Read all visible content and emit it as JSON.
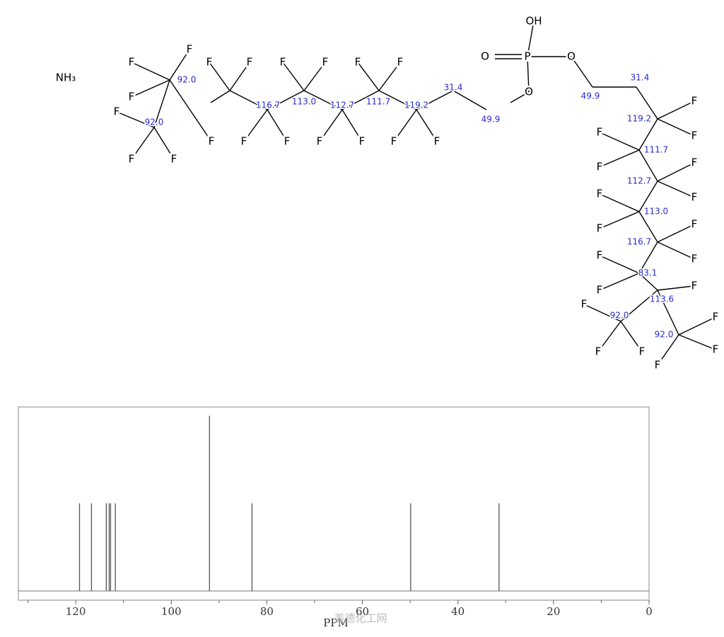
{
  "molecule": {
    "atoms": [
      "NH₃",
      "F",
      "F",
      "F",
      "F",
      "F",
      "F",
      "F",
      "F",
      "F",
      "F",
      "F",
      "F",
      "F",
      "F",
      "F",
      "F",
      "F",
      "F",
      "F",
      "OH",
      "O",
      "P",
      "O",
      "O",
      "F",
      "F",
      "F",
      "F",
      "F",
      "F",
      "F",
      "F",
      "F",
      "F",
      "F",
      "F",
      "F",
      "F",
      "F",
      "F",
      "F",
      "F",
      "F"
    ],
    "shifts": [
      "92.0",
      "92.0",
      "116.7",
      "113.0",
      "112.7",
      "111.7",
      "119.2",
      "31.4",
      "49.9",
      "31.4",
      "49.9",
      "119.2",
      "111.7",
      "112.7",
      "113.0",
      "116.7",
      "83.1",
      "113.6",
      "92.0",
      "92.0"
    ]
  },
  "chart_data": {
    "type": "stem",
    "x_label": "PPM",
    "watermark": "盖德化工网",
    "x": [
      119.2,
      116.7,
      113.6,
      113.0,
      112.7,
      111.7,
      92.0,
      83.1,
      49.9,
      31.4
    ],
    "values": [
      0.5,
      0.5,
      0.5,
      0.5,
      0.5,
      0.5,
      1.0,
      0.5,
      0.5,
      0.5
    ],
    "color": "#555555",
    "xlim": [
      132,
      0
    ],
    "ylim": [
      0,
      1.05
    ],
    "xticks": [
      120,
      100,
      80,
      60,
      40,
      20,
      0
    ],
    "xminorticks": [
      130,
      110,
      90,
      70,
      50,
      30,
      10
    ]
  }
}
